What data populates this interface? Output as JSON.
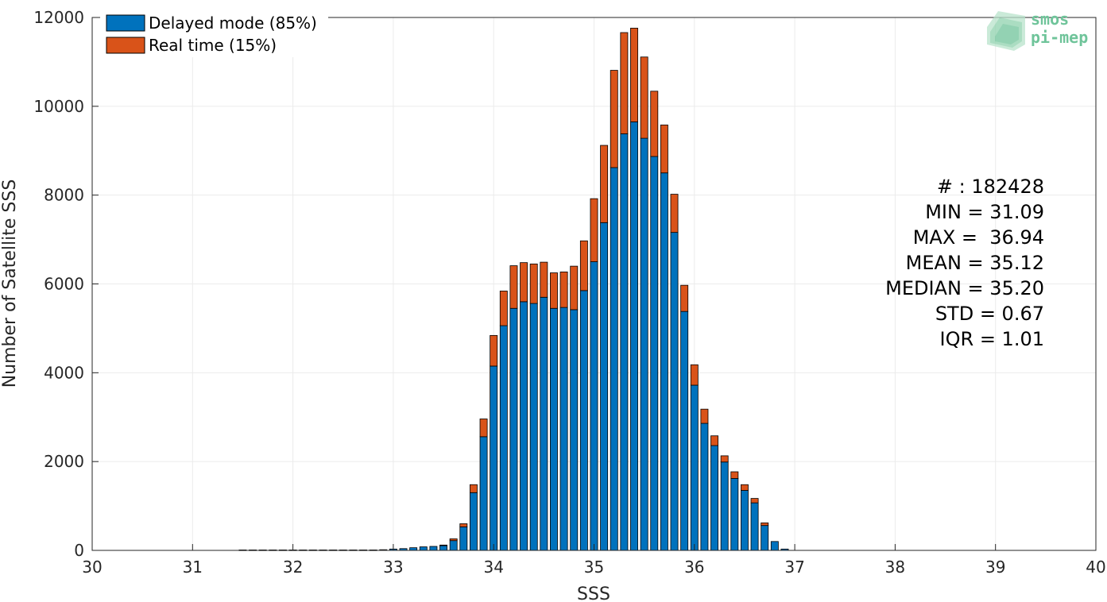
{
  "chart_data": {
    "type": "bar",
    "stacked": true,
    "xlabel": "SSS",
    "ylabel": "Number of Satellite SSS",
    "xlim": [
      30,
      40
    ],
    "ylim": [
      0,
      12000
    ],
    "xticks": [
      30,
      31,
      32,
      33,
      34,
      35,
      36,
      37,
      38,
      39,
      40
    ],
    "yticks": [
      0,
      2000,
      4000,
      6000,
      8000,
      10000,
      12000
    ],
    "grid": true,
    "legend_position": "top-left",
    "x": [
      31.5,
      31.6,
      31.7,
      31.8,
      31.9,
      32.0,
      32.1,
      32.2,
      32.3,
      32.4,
      32.5,
      32.6,
      32.7,
      32.8,
      32.9,
      33.0,
      33.1,
      33.2,
      33.3,
      33.4,
      33.5,
      33.6,
      33.7,
      33.8,
      33.9,
      34.0,
      34.1,
      34.2,
      34.3,
      34.4,
      34.5,
      34.6,
      34.7,
      34.8,
      34.9,
      35.0,
      35.1,
      35.2,
      35.3,
      35.4,
      35.5,
      35.6,
      35.7,
      35.8,
      35.9,
      36.0,
      36.1,
      36.2,
      36.3,
      36.4,
      36.5,
      36.6,
      36.7,
      36.8,
      36.9
    ],
    "series": [
      {
        "name": "Delayed mode (85%)",
        "color": "#0072bd",
        "values": [
          10,
          10,
          10,
          10,
          10,
          10,
          10,
          10,
          10,
          10,
          10,
          10,
          10,
          10,
          15,
          30,
          40,
          60,
          80,
          90,
          110,
          220,
          530,
          1300,
          2560,
          4150,
          5060,
          5450,
          5600,
          5560,
          5700,
          5450,
          5470,
          5420,
          5850,
          6500,
          7380,
          8620,
          9380,
          9650,
          9280,
          8870,
          8500,
          7160,
          5380,
          3720,
          2860,
          2360,
          1990,
          1620,
          1350,
          1070,
          560,
          200,
          30
        ]
      },
      {
        "name": "Real time (15%)",
        "color": "#d95319",
        "values": [
          0,
          0,
          0,
          0,
          0,
          0,
          0,
          0,
          0,
          0,
          0,
          0,
          0,
          0,
          0,
          0,
          0,
          0,
          0,
          0,
          10,
          40,
          70,
          180,
          400,
          690,
          780,
          960,
          880,
          890,
          790,
          800,
          800,
          980,
          1120,
          1420,
          1740,
          2190,
          2280,
          2110,
          1830,
          1470,
          1080,
          860,
          590,
          460,
          320,
          220,
          140,
          150,
          130,
          100,
          60,
          0,
          0
        ]
      }
    ]
  },
  "legend": {
    "items": [
      {
        "label": "Delayed mode (85%)",
        "color": "#0072bd"
      },
      {
        "label": "Real time (15%)",
        "color": "#d95319"
      }
    ]
  },
  "stats": {
    "count": "# : 182428",
    "min": "MIN = 31.09",
    "max": "MAX =  36.94",
    "mean": "MEAN = 35.12",
    "median": "MEDIAN = 35.20",
    "std": "STD = 0.67",
    "iqr": "IQR = 1.01"
  },
  "logo": {
    "line1": "smos",
    "line2": "pi-mep",
    "color": "#6fc49a"
  }
}
